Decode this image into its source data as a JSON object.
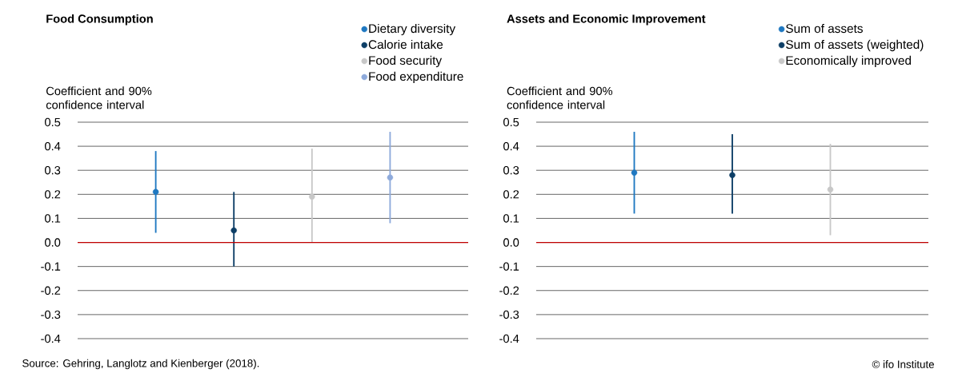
{
  "chart_data": [
    {
      "type": "scatter",
      "title": "Food Consumption",
      "ylabel": "Coefficient and 90% confidence interval",
      "categories": [
        null,
        null,
        null,
        null
      ],
      "series": [
        {
          "name": "Dietary diversity",
          "color": "#1f78c1",
          "values": [
            0.21,
            null,
            null,
            null
          ],
          "errors": [
            [
              0.04,
              0.38
            ],
            null,
            null,
            null
          ]
        },
        {
          "name": "Calorie intake",
          "color": "#0d3e66",
          "values": [
            null,
            0.05,
            null,
            null
          ],
          "errors": [
            null,
            [
              -0.1,
              0.21
            ],
            null,
            null
          ]
        },
        {
          "name": "Food security",
          "color": "#c8c8c8",
          "values": [
            null,
            null,
            0.19,
            null
          ],
          "errors": [
            null,
            null,
            [
              0.0,
              0.39
            ],
            null
          ]
        },
        {
          "name": "Food expenditure",
          "color": "#8eaadb",
          "values": [
            null,
            null,
            null,
            0.27
          ],
          "errors": [
            null,
            null,
            null,
            [
              0.08,
              0.46
            ]
          ]
        }
      ],
      "ylim": [
        -0.4,
        0.5
      ],
      "yticks": [
        0.5,
        0.4,
        0.3,
        0.2,
        0.1,
        {
          "value": 0,
          "label": "0.0"
        },
        -0.1,
        -0.2,
        -0.3,
        -0.4
      ],
      "ref_lines": [
        {
          "axis": "y",
          "value": 0,
          "color": "#c00000"
        }
      ],
      "grid": "y",
      "legend": "top right",
      "marker": "circle",
      "tick_labels": "y",
      "annotations": [
        "Source: Gehring, Langlotz and Kienberger (2018)."
      ]
    },
    {
      "type": "scatter",
      "title": "Assets and Economic Improvement",
      "ylabel": "Coefficient and 90% confidence interval",
      "categories": [
        null,
        null,
        null
      ],
      "series": [
        {
          "name": "Sum of assets",
          "color": "#1f78c1",
          "values": [
            0.29,
            null,
            null
          ],
          "errors": [
            [
              0.12,
              0.46
            ],
            null,
            null
          ]
        },
        {
          "name": "Sum of assets (weighted)",
          "color": "#0d3e66",
          "values": [
            null,
            0.28,
            null
          ],
          "errors": [
            null,
            [
              0.12,
              0.45
            ],
            null
          ]
        },
        {
          "name": "Economically improved",
          "color": "#c8c8c8",
          "values": [
            null,
            null,
            0.22
          ],
          "errors": [
            null,
            null,
            [
              0.03,
              0.41
            ]
          ]
        }
      ],
      "ylim": [
        -0.4,
        0.5
      ],
      "yticks": [
        0.5,
        0.4,
        0.3,
        0.2,
        0.1,
        {
          "value": 0,
          "label": "0.0"
        },
        -0.1,
        -0.2,
        -0.3,
        -0.4
      ],
      "ref_lines": [
        {
          "axis": "y",
          "value": 0,
          "color": "#c00000"
        }
      ],
      "grid": "y",
      "legend": "top right",
      "marker": "circle",
      "tick_labels": "y",
      "annotations": [
        "© ifo Institute"
      ]
    }
  ]
}
